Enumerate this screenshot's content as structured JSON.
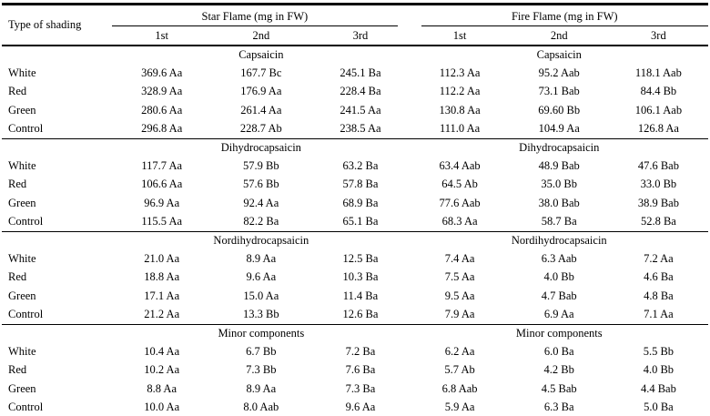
{
  "table": {
    "row_header": "Type of shading",
    "groups": [
      {
        "label": "Star Flame (mg in FW)"
      },
      {
        "label": "Fire Flame (mg in FW)"
      }
    ],
    "subcolumns": [
      "1st",
      "2nd",
      "3rd"
    ],
    "sections": [
      {
        "name": "Capsaicin",
        "rows": [
          {
            "label": "White",
            "values": [
              "369.6 Aa",
              "167.7 Bc",
              "245.1 Ba",
              "112.3 Aa",
              "95.2 Aab",
              "118.1 Aab"
            ]
          },
          {
            "label": "Red",
            "values": [
              "328.9 Aa",
              "176.9 Aa",
              "228.4 Ba",
              "112.2 Aa",
              "73.1 Bab",
              "84.4 Bb"
            ]
          },
          {
            "label": "Green",
            "values": [
              "280.6 Aa",
              "261.4 Aa",
              "241.5 Aa",
              "130.8 Aa",
              "69.60 Bb",
              "106.1 Aab"
            ]
          },
          {
            "label": "Control",
            "values": [
              "296.8 Aa",
              "228.7 Ab",
              "238.5 Aa",
              "111.0 Aa",
              "104.9 Aa",
              "126.8 Aa"
            ]
          }
        ]
      },
      {
        "name": "Dihydrocapsaicin",
        "rows": [
          {
            "label": "White",
            "values": [
              "117.7 Aa",
              "57.9 Bb",
              "63.2 Ba",
              "63.4 Aab",
              "48.9 Bab",
              "47.6 Bab"
            ]
          },
          {
            "label": "Red",
            "values": [
              "106.6 Aa",
              "57.6 Bb",
              "57.8 Ba",
              "64.5 Ab",
              "35.0 Bb",
              "33.0 Bb"
            ]
          },
          {
            "label": "Green",
            "values": [
              "96.9 Aa",
              "92.4 Aa",
              "68.9 Ba",
              "77.6 Aab",
              "38.0 Bab",
              "38.9 Bab"
            ]
          },
          {
            "label": "Control",
            "values": [
              "115.5 Aa",
              "82.2 Ba",
              "65.1 Ba",
              "68.3 Aa",
              "58.7 Ba",
              "52.8 Ba"
            ]
          }
        ]
      },
      {
        "name": "Nordihydrocapsaicin",
        "rows": [
          {
            "label": "White",
            "values": [
              "21.0 Aa",
              "8.9 Aa",
              "12.5 Ba",
              "7.4 Aa",
              "6.3 Aab",
              "7.2 Aa"
            ]
          },
          {
            "label": "Red",
            "values": [
              "18.8 Aa",
              "9.6 Aa",
              "10.3 Ba",
              "7.5 Aa",
              "4.0 Bb",
              "4.6 Ba"
            ]
          },
          {
            "label": "Green",
            "values": [
              "17.1 Aa",
              "15.0 Aa",
              "11.4 Ba",
              "9.5 Aa",
              "4.7 Bab",
              "4.8 Ba"
            ]
          },
          {
            "label": "Control",
            "values": [
              "21.2 Aa",
              "13.3 Bb",
              "12.6 Ba",
              "7.9 Aa",
              "6.9 Aa",
              "7.1 Aa"
            ]
          }
        ]
      },
      {
        "name": "Minor components",
        "rows": [
          {
            "label": "White",
            "values": [
              "10.4 Aa",
              "6.7 Bb",
              "7.2 Ba",
              "6.2 Aa",
              "6.0 Ba",
              "5.5 Bb"
            ]
          },
          {
            "label": "Red",
            "values": [
              "10.2 Aa",
              "7.3 Bb",
              "7.6 Ba",
              "5.7 Ab",
              "4.2 Bb",
              "4.0 Bb"
            ]
          },
          {
            "label": "Green",
            "values": [
              "8.8 Aa",
              "8.9 Aa",
              "7.3 Ba",
              "6.8 Aab",
              "4.5 Bab",
              "4.4 Bab"
            ]
          },
          {
            "label": "Control",
            "values": [
              "10.0 Aa",
              "8.0 Aab",
              "9.6 Aa",
              "5.9 Aa",
              "6.3 Ba",
              "5.0 Ba"
            ]
          }
        ]
      }
    ]
  }
}
